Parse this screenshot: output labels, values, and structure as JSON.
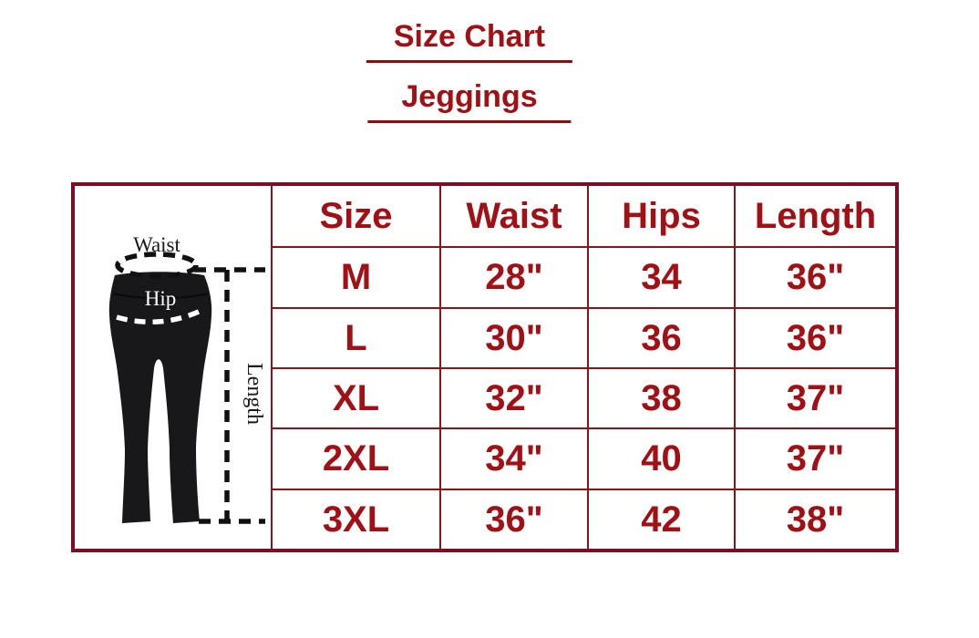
{
  "title": {
    "line1": "Size Chart",
    "line2": "Jeggings"
  },
  "colors": {
    "text_red": "#A01014",
    "title_underline": "#8E0C10",
    "table_outer_border": "#7B0E23",
    "table_inner_border": "#8E1216",
    "garment_black": "#18181A",
    "background": "#FFFFFF"
  },
  "illustration": {
    "waist_label": "Waist",
    "hip_label": "Hip",
    "length_label": "Length"
  },
  "chart_data": {
    "type": "table",
    "title": "Size Chart",
    "subtitle": "Jeggings",
    "columns": [
      "Size",
      "Waist",
      "Hips",
      "Length"
    ],
    "rows": [
      [
        "M",
        "28\"",
        "34",
        "36\""
      ],
      [
        "L",
        "30\"",
        "36",
        "36\""
      ],
      [
        "XL",
        "32\"",
        "38",
        "37\""
      ],
      [
        "2XL",
        "34\"",
        "40",
        "37\""
      ],
      [
        "3XL",
        "36\"",
        "42",
        "38\""
      ]
    ]
  }
}
